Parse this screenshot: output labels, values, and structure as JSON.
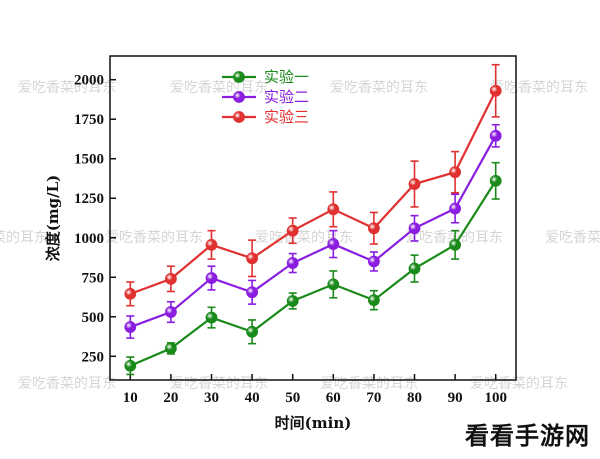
{
  "chart_data": {
    "type": "line",
    "title": "",
    "xlabel": "时间(min)",
    "ylabel": "浓度(mg/L)",
    "x": [
      10,
      20,
      30,
      40,
      50,
      60,
      70,
      80,
      90,
      100
    ],
    "xlim": [
      5,
      105
    ],
    "ylim": [
      100,
      2150
    ],
    "yticks": [
      250,
      500,
      750,
      1000,
      1250,
      1500,
      1750,
      2000
    ],
    "grid": false,
    "legend_position": "top-left",
    "series": [
      {
        "name": "实验一",
        "color": "#1a8a1a",
        "values": [
          190,
          300,
          495,
          405,
          600,
          705,
          605,
          805,
          955,
          1360
        ],
        "errors": [
          55,
          35,
          65,
          75,
          50,
          85,
          60,
          85,
          90,
          115
        ]
      },
      {
        "name": "实验二",
        "color": "#8a1ee0",
        "values": [
          435,
          530,
          745,
          655,
          840,
          960,
          850,
          1060,
          1185,
          1645
        ],
        "errors": [
          70,
          65,
          75,
          75,
          60,
          85,
          60,
          80,
          90,
          70
        ]
      },
      {
        "name": "实验三",
        "color": "#e03030",
        "values": [
          645,
          740,
          955,
          870,
          1045,
          1180,
          1060,
          1340,
          1415,
          1930
        ],
        "errors": [
          75,
          80,
          90,
          115,
          80,
          110,
          100,
          145,
          130,
          165
        ]
      }
    ]
  },
  "watermark": "爱吃香菜的耳东",
  "site_logo": "看看手游网"
}
